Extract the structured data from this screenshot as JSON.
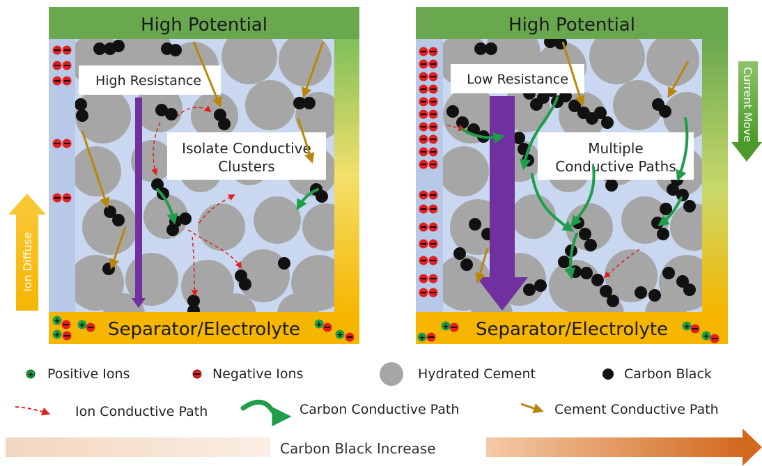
{
  "left_panel": {
    "top_label": "High Potential",
    "bottom_label": "Separator/Electrolyte",
    "resistance_label": "High Resistance",
    "cluster_label_line1": "Isolate Conductive",
    "cluster_label_line2": "Clusters",
    "side_arrow_label": "Ion Diffuse"
  },
  "right_panel": {
    "top_label": "High Potential",
    "bottom_label": "Separator/Electrolyte",
    "resistance_label": "Low Resistance",
    "paths_label_line1": "Multiple",
    "paths_label_line2": "Conductive Paths",
    "side_arrow_label": "Current Move"
  },
  "legend": {
    "positive_ions": "Positive Ions",
    "negative_ions": "Negative Ions",
    "hydrated_cement": "Hydrated Cement",
    "carbon_black": "Carbon Black",
    "ion_path": "Ion  Conductive Path",
    "carbon_path": "Carbon Conductive Path",
    "cement_path": "Cement Conductive Path"
  },
  "gradient_label": "Carbon Black Increase",
  "colors": {
    "green_band": "#6aa84f",
    "yellow_band": "#f6b600",
    "cement": "#a6a6a6",
    "pore": "#c9d8f0",
    "electrode_strip": "#b7c9e6",
    "carbon": "#111111",
    "carbon_path": "#1e9e4a",
    "ion_path": "#e02020",
    "cement_path": "#b8860b",
    "resistance_arrow": "#7030a0"
  }
}
